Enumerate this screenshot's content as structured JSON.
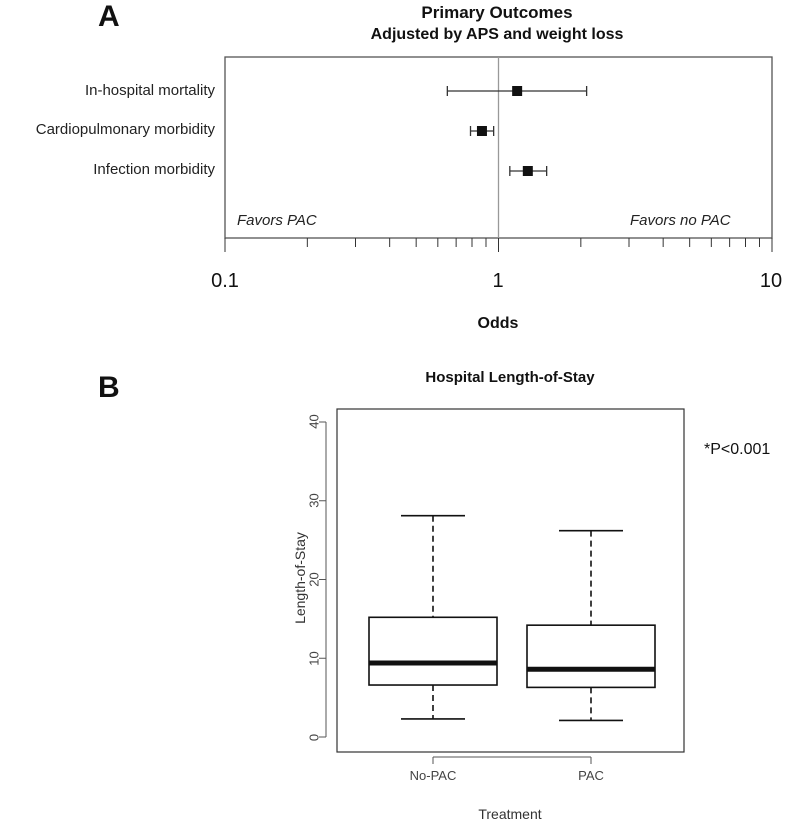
{
  "panel_a": {
    "letter": "A",
    "title": "Primary Outcomes",
    "subtitle": "Adjusted by APS and weight loss",
    "favors_left": "Favors PAC",
    "favors_right": "Favors no PAC",
    "xlabel": "Odds",
    "xticks": [
      "0.1",
      "1",
      "10"
    ]
  },
  "panel_b": {
    "letter": "B",
    "title": "Hospital Length-of-Stay",
    "ylabel": "Length-of-Stay",
    "xlabel": "Treatment",
    "pvalue": "*P<0.001",
    "yticks": [
      "0",
      "10",
      "20",
      "30",
      "40"
    ]
  },
  "chart_data": [
    {
      "type": "forest",
      "title": "Primary Outcomes",
      "subtitle": "Adjusted by APS and weight loss",
      "xlabel": "Odds",
      "xscale": "log",
      "xlim": [
        0.1,
        10
      ],
      "reference_line": 1,
      "grid": false,
      "rows": [
        {
          "label": "In-hospital mortality",
          "estimate": 1.17,
          "lower": 0.65,
          "upper": 2.1
        },
        {
          "label": "Cardiopulmonary morbidity",
          "estimate": 0.87,
          "lower": 0.79,
          "upper": 0.96
        },
        {
          "label": "Infection morbidity",
          "estimate": 1.28,
          "lower": 1.1,
          "upper": 1.5
        }
      ],
      "annotations": [
        "Favors PAC",
        "Favors no PAC"
      ]
    },
    {
      "type": "box",
      "title": "Hospital Length-of-Stay",
      "xlabel": "Treatment",
      "ylabel": "Length-of-Stay",
      "ylim": [
        0,
        40
      ],
      "grid": false,
      "categories": [
        "No-PAC",
        "PAC"
      ],
      "boxes": [
        {
          "category": "No-PAC",
          "whisker_low": 2.3,
          "q1": 6.6,
          "median": 9.4,
          "q3": 15.2,
          "whisker_high": 28.1
        },
        {
          "category": "PAC",
          "whisker_low": 2.1,
          "q1": 6.3,
          "median": 8.6,
          "q3": 14.2,
          "whisker_high": 26.2
        }
      ],
      "annotations": [
        "*P<0.001"
      ]
    }
  ]
}
